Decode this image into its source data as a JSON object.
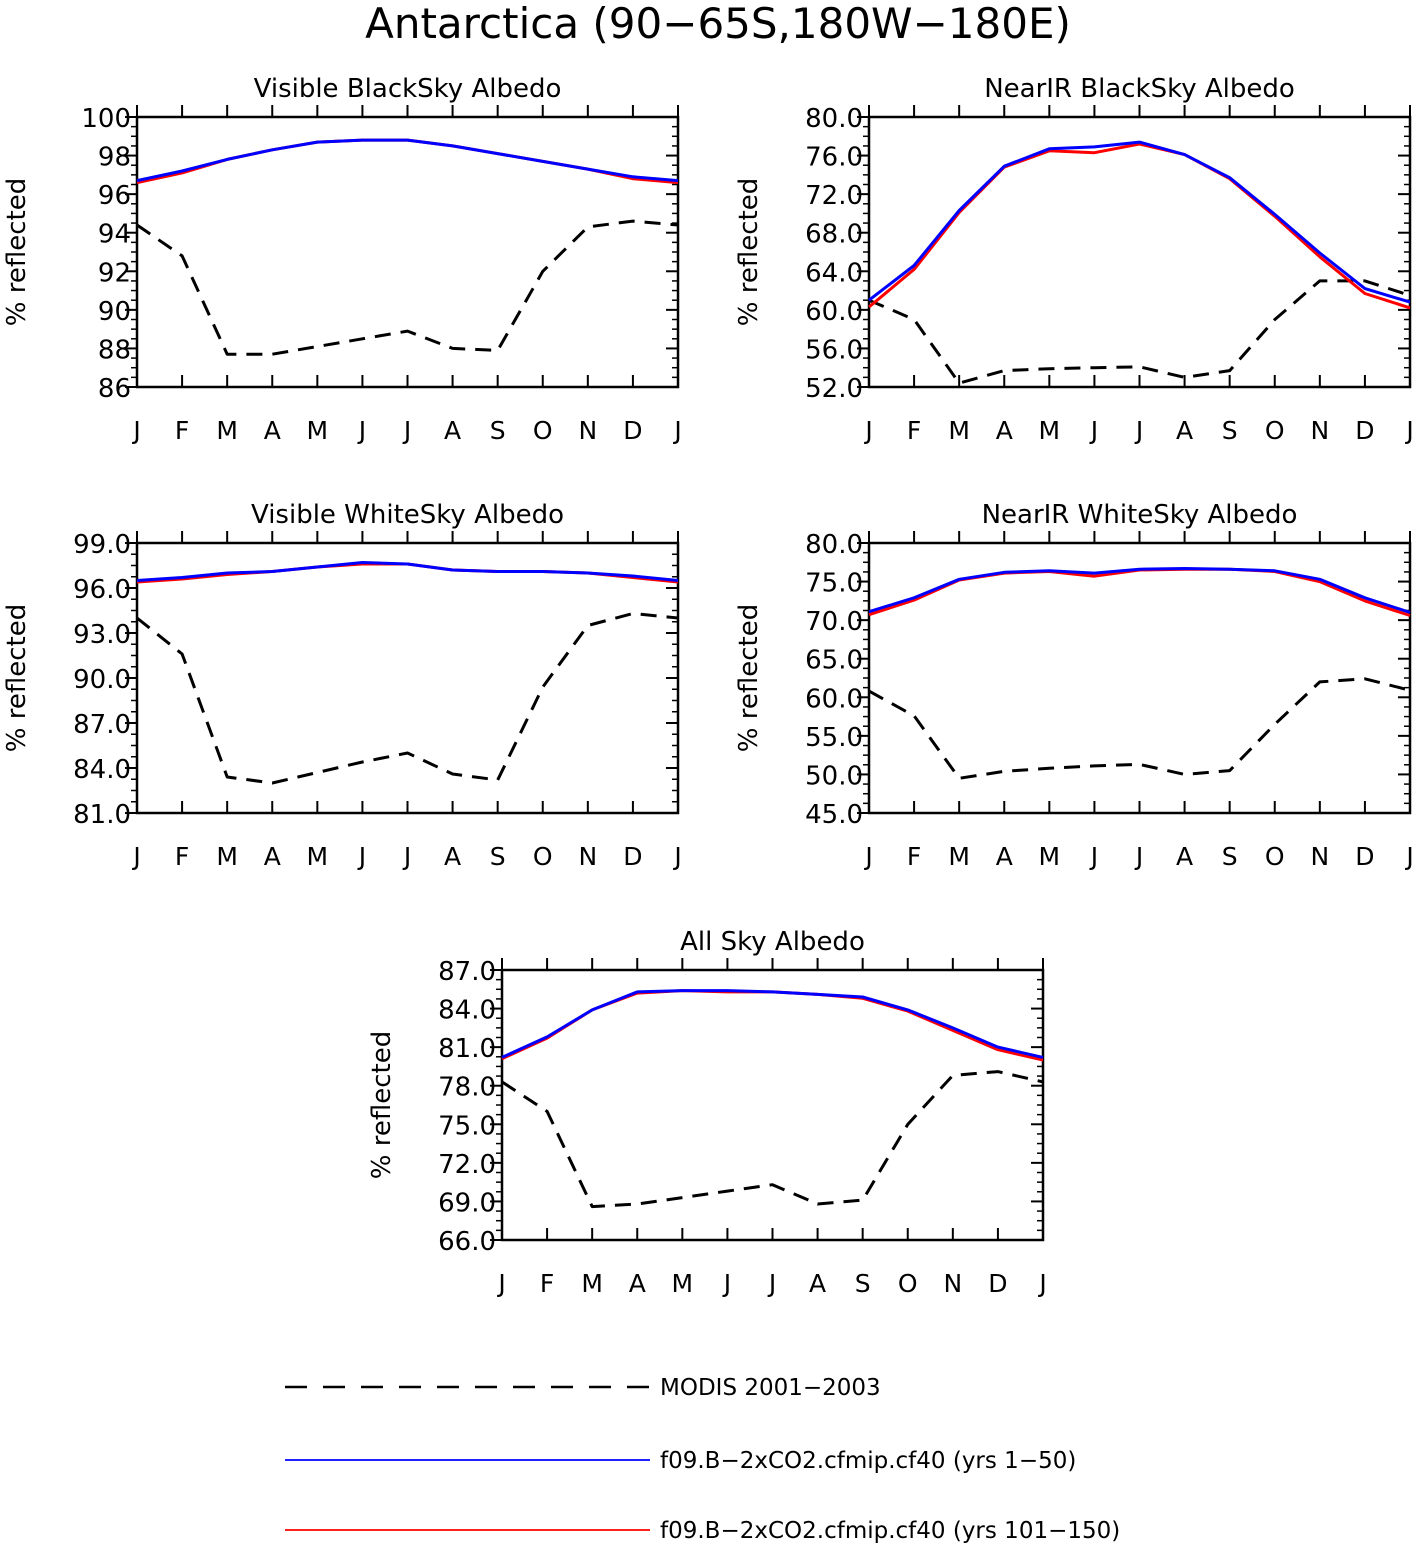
{
  "figure": {
    "title": "Antarctica (90−65S,180W−180E)"
  },
  "legend": [
    {
      "label": "MODIS 2001−2003",
      "color": "#000000",
      "dash": true
    },
    {
      "label": "f09.B−2xCO2.cfmip.cf40 (yrs 1−50)",
      "color": "#0000ff",
      "dash": false
    },
    {
      "label": "f09.B−2xCO2.cfmip.cf40 (yrs 101−150)",
      "color": "#ff0000",
      "dash": false
    }
  ],
  "chart_data": [
    {
      "type": "line",
      "title": "Visible BlackSky Albedo",
      "ylabel": "% reflected",
      "categories": [
        "J",
        "F",
        "M",
        "A",
        "M",
        "J",
        "J",
        "A",
        "S",
        "O",
        "N",
        "D",
        "J"
      ],
      "ylim": [
        86,
        100
      ],
      "yticks": [
        86,
        88,
        90,
        92,
        94,
        96,
        98,
        100
      ],
      "yticklabels": [
        "86",
        "88",
        "90",
        "92",
        "94",
        "96",
        "98",
        "100"
      ],
      "series": [
        {
          "name": "MODIS 2001−2003",
          "color": "#000000",
          "dash": true,
          "values": [
            94.4,
            92.8,
            87.7,
            87.7,
            88.1,
            88.5,
            88.9,
            88.0,
            87.9,
            92.0,
            94.3,
            94.6,
            94.4
          ]
        },
        {
          "name": "f09.B−2xCO2.cfmip.cf40 (yrs 101−150)",
          "color": "#ff0000",
          "dash": false,
          "values": [
            96.6,
            97.1,
            97.8,
            98.3,
            98.7,
            98.8,
            98.8,
            98.5,
            98.1,
            97.7,
            97.3,
            96.8,
            96.6
          ]
        },
        {
          "name": "f09.B−2xCO2.cfmip.cf40 (yrs 1−50)",
          "color": "#0000ff",
          "dash": false,
          "values": [
            96.7,
            97.2,
            97.8,
            98.3,
            98.7,
            98.8,
            98.8,
            98.5,
            98.1,
            97.7,
            97.3,
            96.9,
            96.7
          ]
        }
      ]
    },
    {
      "type": "line",
      "title": "NearIR BlackSky Albedo",
      "ylabel": "% reflected",
      "categories": [
        "J",
        "F",
        "M",
        "A",
        "M",
        "J",
        "J",
        "A",
        "S",
        "O",
        "N",
        "D",
        "J"
      ],
      "ylim": [
        52,
        80
      ],
      "yticks": [
        52,
        56,
        60,
        64,
        68,
        72,
        76,
        80
      ],
      "yticklabels": [
        "52.0",
        "56.0",
        "60.0",
        "64.0",
        "68.0",
        "72.0",
        "76.0",
        "80.0"
      ],
      "series": [
        {
          "name": "MODIS 2001−2003",
          "color": "#000000",
          "dash": true,
          "values": [
            61.0,
            59.0,
            52.4,
            53.7,
            53.9,
            54.0,
            54.1,
            53.0,
            53.7,
            59.0,
            63.0,
            63.0,
            61.5
          ]
        },
        {
          "name": "f09.B−2xCO2.cfmip.cf40 (yrs 101−150)",
          "color": "#ff0000",
          "dash": false,
          "values": [
            60.3,
            64.2,
            70.1,
            74.8,
            76.5,
            76.3,
            77.2,
            76.1,
            73.6,
            69.7,
            65.5,
            61.7,
            60.2
          ]
        },
        {
          "name": "f09.B−2xCO2.cfmip.cf40 (yrs 1−50)",
          "color": "#0000ff",
          "dash": false,
          "values": [
            61.0,
            64.6,
            70.3,
            74.9,
            76.7,
            76.9,
            77.4,
            76.1,
            73.7,
            69.9,
            65.9,
            62.2,
            60.8
          ]
        }
      ]
    },
    {
      "type": "line",
      "title": "Visible WhiteSky Albedo",
      "ylabel": "% reflected",
      "categories": [
        "J",
        "F",
        "M",
        "A",
        "M",
        "J",
        "J",
        "A",
        "S",
        "O",
        "N",
        "D",
        "J"
      ],
      "ylim": [
        81,
        99
      ],
      "yticks": [
        81,
        84,
        87,
        90,
        93,
        96,
        99
      ],
      "yticklabels": [
        "81.0",
        "84.0",
        "87.0",
        "90.0",
        "93.0",
        "96.0",
        "99.0"
      ],
      "series": [
        {
          "name": "MODIS 2001−2003",
          "color": "#000000",
          "dash": true,
          "values": [
            94.0,
            91.6,
            83.4,
            83.0,
            83.7,
            84.4,
            85.0,
            83.6,
            83.2,
            89.4,
            93.5,
            94.3,
            94.0
          ]
        },
        {
          "name": "f09.B−2xCO2.cfmip.cf40 (yrs 101−150)",
          "color": "#ff0000",
          "dash": false,
          "values": [
            96.4,
            96.6,
            96.9,
            97.1,
            97.4,
            97.6,
            97.6,
            97.2,
            97.1,
            97.1,
            97.0,
            96.7,
            96.4
          ]
        },
        {
          "name": "f09.B−2xCO2.cfmip.cf40 (yrs 1−50)",
          "color": "#0000ff",
          "dash": false,
          "values": [
            96.5,
            96.7,
            97.0,
            97.1,
            97.4,
            97.7,
            97.6,
            97.2,
            97.1,
            97.1,
            97.0,
            96.8,
            96.5
          ]
        }
      ]
    },
    {
      "type": "line",
      "title": "NearIR WhiteSky Albedo",
      "ylabel": "% reflected",
      "categories": [
        "J",
        "F",
        "M",
        "A",
        "M",
        "J",
        "J",
        "A",
        "S",
        "O",
        "N",
        "D",
        "J"
      ],
      "ylim": [
        45,
        80
      ],
      "yticks": [
        45,
        50,
        55,
        60,
        65,
        70,
        75,
        80
      ],
      "yticklabels": [
        "45.0",
        "50.0",
        "55.0",
        "60.0",
        "65.0",
        "70.0",
        "75.0",
        "80.0"
      ],
      "series": [
        {
          "name": "MODIS 2001−2003",
          "color": "#000000",
          "dash": true,
          "values": [
            60.8,
            57.6,
            49.5,
            50.4,
            50.8,
            51.1,
            51.3,
            50.0,
            50.5,
            56.5,
            62.0,
            62.4,
            60.9
          ]
        },
        {
          "name": "f09.B−2xCO2.cfmip.cf40 (yrs 101−150)",
          "color": "#ff0000",
          "dash": false,
          "values": [
            70.7,
            72.6,
            75.2,
            76.1,
            76.3,
            75.7,
            76.5,
            76.6,
            76.6,
            76.3,
            75.0,
            72.5,
            70.6
          ]
        },
        {
          "name": "f09.B−2xCO2.cfmip.cf40 (yrs 1−50)",
          "color": "#0000ff",
          "dash": false,
          "values": [
            71.1,
            72.9,
            75.3,
            76.2,
            76.4,
            76.1,
            76.6,
            76.7,
            76.6,
            76.4,
            75.3,
            72.9,
            71.0
          ]
        }
      ]
    },
    {
      "type": "line",
      "title": "All Sky Albedo",
      "ylabel": "% reflected",
      "categories": [
        "J",
        "F",
        "M",
        "A",
        "M",
        "J",
        "J",
        "A",
        "S",
        "O",
        "N",
        "D",
        "J"
      ],
      "ylim": [
        66,
        87
      ],
      "yticks": [
        66,
        69,
        72,
        75,
        78,
        81,
        84,
        87
      ],
      "yticklabels": [
        "66.0",
        "69.0",
        "72.0",
        "75.0",
        "78.0",
        "81.0",
        "84.0",
        "87.0"
      ],
      "series": [
        {
          "name": "MODIS 2001−2003",
          "color": "#000000",
          "dash": true,
          "values": [
            78.3,
            76.0,
            68.6,
            68.8,
            69.3,
            69.8,
            70.3,
            68.8,
            69.1,
            75.0,
            78.8,
            79.1,
            78.3
          ]
        },
        {
          "name": "f09.B−2xCO2.cfmip.cf40 (yrs 101−150)",
          "color": "#ff0000",
          "dash": false,
          "values": [
            80.1,
            81.7,
            83.9,
            85.2,
            85.4,
            85.3,
            85.3,
            85.1,
            84.8,
            83.8,
            82.3,
            80.8,
            80.0
          ]
        },
        {
          "name": "f09.B−2xCO2.cfmip.cf40 (yrs 1−50)",
          "color": "#0000ff",
          "dash": false,
          "values": [
            80.2,
            81.8,
            83.9,
            85.3,
            85.4,
            85.4,
            85.3,
            85.1,
            84.9,
            83.9,
            82.5,
            81.0,
            80.2
          ]
        }
      ]
    }
  ]
}
